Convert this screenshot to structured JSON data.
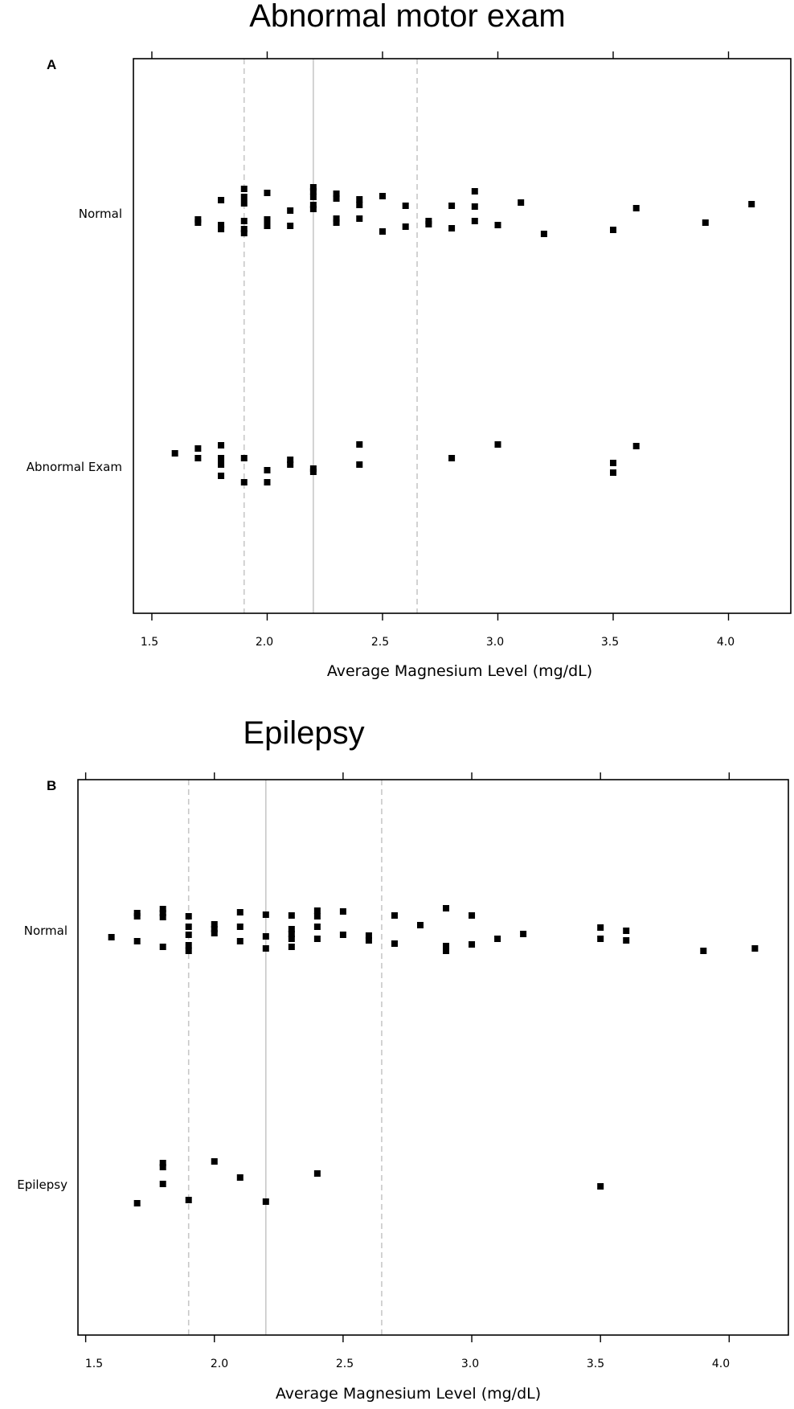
{
  "chart_data": [
    {
      "type": "scatter",
      "panel": "A",
      "title": "Abnormal motor exam",
      "xlabel": "Average Magnesium Level (mg/dL)",
      "xlim": [
        1.42,
        4.27
      ],
      "xticks": [
        "1.5",
        "2.0",
        "2.5",
        "3.0",
        "3.5",
        "4.0"
      ],
      "categories": [
        "Normal",
        "Abnormal Exam"
      ],
      "reference_lines": {
        "solid": 2.2,
        "dashed": [
          1.9,
          2.65
        ]
      },
      "colors": {
        "points": "#000000",
        "solid_line": "#c8c8c8",
        "dashed_line": "#c8c8c8"
      },
      "series": [
        {
          "category": "Normal",
          "points": [
            {
              "x": 1.7,
              "j": 0.08
            },
            {
              "x": 1.7,
              "j": 0.12
            },
            {
              "x": 1.8,
              "j": -0.16
            },
            {
              "x": 1.8,
              "j": 0.15
            },
            {
              "x": 1.8,
              "j": 0.2
            },
            {
              "x": 1.9,
              "j": -0.3
            },
            {
              "x": 1.9,
              "j": -0.2
            },
            {
              "x": 1.9,
              "j": -0.12
            },
            {
              "x": 1.9,
              "j": 0.1
            },
            {
              "x": 1.9,
              "j": 0.2
            },
            {
              "x": 1.9,
              "j": 0.25
            },
            {
              "x": 2.0,
              "j": -0.25
            },
            {
              "x": 2.0,
              "j": 0.08
            },
            {
              "x": 2.0,
              "j": 0.16
            },
            {
              "x": 2.1,
              "j": -0.03
            },
            {
              "x": 2.1,
              "j": 0.16
            },
            {
              "x": 2.2,
              "j": -0.32
            },
            {
              "x": 2.2,
              "j": -0.27
            },
            {
              "x": 2.2,
              "j": -0.2
            },
            {
              "x": 2.2,
              "j": -0.1
            },
            {
              "x": 2.2,
              "j": -0.05
            },
            {
              "x": 2.3,
              "j": -0.24
            },
            {
              "x": 2.3,
              "j": -0.18
            },
            {
              "x": 2.3,
              "j": 0.07
            },
            {
              "x": 2.3,
              "j": 0.12
            },
            {
              "x": 2.4,
              "j": -0.17
            },
            {
              "x": 2.4,
              "j": -0.1
            },
            {
              "x": 2.4,
              "j": 0.07
            },
            {
              "x": 2.5,
              "j": -0.21
            },
            {
              "x": 2.5,
              "j": 0.23
            },
            {
              "x": 2.6,
              "j": -0.09
            },
            {
              "x": 2.6,
              "j": 0.17
            },
            {
              "x": 2.7,
              "j": 0.1
            },
            {
              "x": 2.7,
              "j": 0.14
            },
            {
              "x": 2.8,
              "j": -0.09
            },
            {
              "x": 2.8,
              "j": 0.19
            },
            {
              "x": 2.9,
              "j": -0.27
            },
            {
              "x": 2.9,
              "j": -0.08
            },
            {
              "x": 2.9,
              "j": 0.1
            },
            {
              "x": 3.0,
              "j": 0.15
            },
            {
              "x": 3.1,
              "j": -0.13
            },
            {
              "x": 3.2,
              "j": 0.26
            },
            {
              "x": 3.5,
              "j": 0.21
            },
            {
              "x": 3.6,
              "j": -0.06
            },
            {
              "x": 3.9,
              "j": 0.12
            },
            {
              "x": 4.1,
              "j": -0.11
            }
          ]
        },
        {
          "category": "Abnormal Exam",
          "points": [
            {
              "x": 1.6,
              "j": -0.16
            },
            {
              "x": 1.7,
              "j": -0.22
            },
            {
              "x": 1.7,
              "j": -0.1
            },
            {
              "x": 1.8,
              "j": -0.26
            },
            {
              "x": 1.8,
              "j": -0.1
            },
            {
              "x": 1.8,
              "j": -0.02
            },
            {
              "x": 1.8,
              "j": 0.12
            },
            {
              "x": 1.9,
              "j": -0.1
            },
            {
              "x": 1.9,
              "j": 0.2
            },
            {
              "x": 2.0,
              "j": 0.05
            },
            {
              "x": 2.0,
              "j": 0.2
            },
            {
              "x": 2.1,
              "j": -0.08
            },
            {
              "x": 2.1,
              "j": -0.02
            },
            {
              "x": 2.2,
              "j": 0.03
            },
            {
              "x": 2.2,
              "j": 0.07
            },
            {
              "x": 2.4,
              "j": -0.27
            },
            {
              "x": 2.4,
              "j": -0.02
            },
            {
              "x": 2.8,
              "j": -0.1
            },
            {
              "x": 3.0,
              "j": -0.27
            },
            {
              "x": 3.5,
              "j": -0.04
            },
            {
              "x": 3.5,
              "j": 0.08
            },
            {
              "x": 3.6,
              "j": -0.25
            }
          ]
        }
      ]
    },
    {
      "type": "scatter",
      "panel": "B",
      "title": "Epilepsy",
      "xlabel": "Average Magnesium Level (mg/dL)",
      "xlim": [
        1.47,
        4.23
      ],
      "xticks": [
        "1.5",
        "2.0",
        "2.5",
        "3.0",
        "3.5",
        "4.0"
      ],
      "categories": [
        "Normal",
        "Epilepsy"
      ],
      "reference_lines": {
        "solid": 2.2,
        "dashed": [
          1.9,
          2.65
        ]
      },
      "colors": {
        "points": "#000000",
        "solid_line": "#c8c8c8",
        "dashed_line": "#c8c8c8"
      },
      "series": [
        {
          "category": "Normal",
          "points": [
            {
              "x": 1.6,
              "j": 0.08
            },
            {
              "x": 1.7,
              "j": -0.22
            },
            {
              "x": 1.7,
              "j": -0.18
            },
            {
              "x": 1.7,
              "j": 0.13
            },
            {
              "x": 1.8,
              "j": -0.27
            },
            {
              "x": 1.8,
              "j": -0.22
            },
            {
              "x": 1.8,
              "j": -0.17
            },
            {
              "x": 1.8,
              "j": 0.2
            },
            {
              "x": 1.9,
              "j": -0.18
            },
            {
              "x": 1.9,
              "j": -0.05
            },
            {
              "x": 1.9,
              "j": 0.05
            },
            {
              "x": 1.9,
              "j": 0.18
            },
            {
              "x": 1.9,
              "j": 0.25
            },
            {
              "x": 2.0,
              "j": -0.08
            },
            {
              "x": 2.0,
              "j": -0.02
            },
            {
              "x": 2.0,
              "j": 0.03
            },
            {
              "x": 2.1,
              "j": -0.23
            },
            {
              "x": 2.1,
              "j": -0.05
            },
            {
              "x": 2.1,
              "j": 0.13
            },
            {
              "x": 2.2,
              "j": -0.2
            },
            {
              "x": 2.2,
              "j": 0.07
            },
            {
              "x": 2.2,
              "j": 0.22
            },
            {
              "x": 2.3,
              "j": -0.19
            },
            {
              "x": 2.3,
              "j": -0.02
            },
            {
              "x": 2.3,
              "j": 0.04
            },
            {
              "x": 2.3,
              "j": 0.1
            },
            {
              "x": 2.3,
              "j": 0.2
            },
            {
              "x": 2.4,
              "j": -0.25
            },
            {
              "x": 2.4,
              "j": -0.18
            },
            {
              "x": 2.4,
              "j": -0.05
            },
            {
              "x": 2.4,
              "j": 0.1
            },
            {
              "x": 2.5,
              "j": -0.24
            },
            {
              "x": 2.5,
              "j": 0.05
            },
            {
              "x": 2.6,
              "j": 0.06
            },
            {
              "x": 2.6,
              "j": 0.12
            },
            {
              "x": 2.7,
              "j": -0.19
            },
            {
              "x": 2.7,
              "j": 0.16
            },
            {
              "x": 2.8,
              "j": -0.07
            },
            {
              "x": 2.9,
              "j": -0.28
            },
            {
              "x": 2.9,
              "j": 0.19
            },
            {
              "x": 2.9,
              "j": 0.25
            },
            {
              "x": 3.0,
              "j": -0.19
            },
            {
              "x": 3.0,
              "j": 0.17
            },
            {
              "x": 3.1,
              "j": 0.1
            },
            {
              "x": 3.2,
              "j": 0.04
            },
            {
              "x": 3.5,
              "j": -0.04
            },
            {
              "x": 3.5,
              "j": 0.1
            },
            {
              "x": 3.6,
              "j": 0.0
            },
            {
              "x": 3.6,
              "j": 0.12
            },
            {
              "x": 3.9,
              "j": 0.25
            },
            {
              "x": 4.1,
              "j": 0.22
            }
          ]
        },
        {
          "category": "Epilepsy",
          "points": [
            {
              "x": 1.7,
              "j": 0.24
            },
            {
              "x": 1.8,
              "j": -0.26
            },
            {
              "x": 1.8,
              "j": -0.21
            },
            {
              "x": 1.8,
              "j": 0.0
            },
            {
              "x": 1.9,
              "j": 0.2
            },
            {
              "x": 2.0,
              "j": -0.28
            },
            {
              "x": 2.1,
              "j": -0.08
            },
            {
              "x": 2.2,
              "j": 0.22
            },
            {
              "x": 2.4,
              "j": -0.13
            },
            {
              "x": 3.5,
              "j": 0.03
            }
          ]
        }
      ]
    }
  ]
}
